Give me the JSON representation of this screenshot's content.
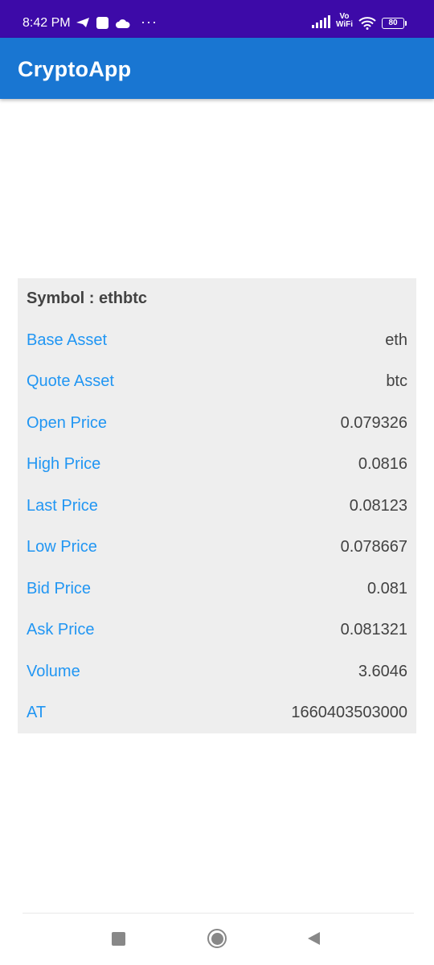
{
  "status_bar": {
    "time": "8:42 PM",
    "vo": "Vo",
    "wifi_label": "WiFi",
    "battery": "80",
    "more": "···"
  },
  "app_bar": {
    "title": "CryptoApp",
    "background": "#1976d2"
  },
  "ticker": {
    "symbol_text": "Symbol : ethbtc",
    "rows": [
      {
        "label": "Base Asset",
        "value": "eth"
      },
      {
        "label": "Quote Asset",
        "value": "btc"
      },
      {
        "label": "Open Price",
        "value": "0.079326"
      },
      {
        "label": "High Price",
        "value": "0.0816"
      },
      {
        "label": "Last Price",
        "value": "0.08123"
      },
      {
        "label": "Low Price",
        "value": "0.078667"
      },
      {
        "label": "Bid Price",
        "value": "0.081"
      },
      {
        "label": "Ask Price",
        "value": "0.081321"
      },
      {
        "label": "Volume",
        "value": "3.6046"
      },
      {
        "label": "AT",
        "value": "1660403503000"
      }
    ]
  },
  "nav_bar": {
    "icons": [
      "recents-square-icon",
      "home-circle-icon",
      "back-triangle-icon"
    ]
  }
}
